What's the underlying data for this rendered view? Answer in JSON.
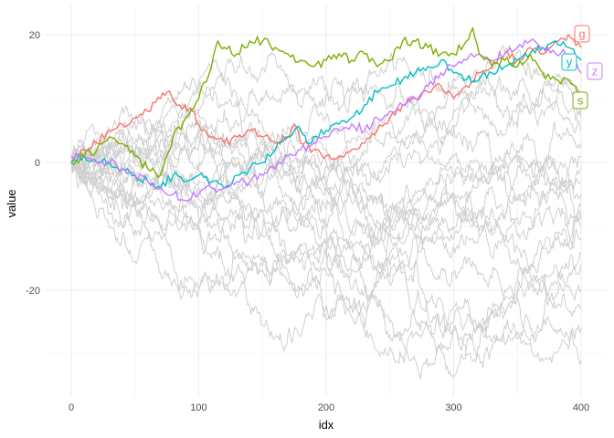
{
  "chart_data": {
    "type": "line",
    "xlabel": "idx",
    "ylabel": "value",
    "xlim": [
      0,
      400
    ],
    "ylim": [
      -35,
      22
    ],
    "x_ticks": [
      0,
      100,
      200,
      300,
      400
    ],
    "y_ticks": [
      -20,
      0,
      20
    ],
    "grid": true,
    "n_background_series": 20,
    "background_color": "#cfcfcf",
    "highlighted_series": [
      {
        "name": "g",
        "color": "#f8766d",
        "points": [
          [
            0,
            0
          ],
          [
            10,
            2
          ],
          [
            20,
            3
          ],
          [
            30,
            5
          ],
          [
            40,
            6
          ],
          [
            50,
            7
          ],
          [
            60,
            8
          ],
          [
            70,
            10
          ],
          [
            75,
            11
          ],
          [
            85,
            9
          ],
          [
            95,
            8
          ],
          [
            100,
            6
          ],
          [
            110,
            4
          ],
          [
            120,
            3
          ],
          [
            130,
            4
          ],
          [
            140,
            5
          ],
          [
            150,
            4
          ],
          [
            160,
            3
          ],
          [
            170,
            4
          ],
          [
            175,
            6
          ],
          [
            180,
            3
          ],
          [
            190,
            2
          ],
          [
            200,
            1
          ],
          [
            210,
            1
          ],
          [
            220,
            2
          ],
          [
            230,
            3
          ],
          [
            240,
            5
          ],
          [
            250,
            7
          ],
          [
            260,
            9
          ],
          [
            270,
            10
          ],
          [
            280,
            11
          ],
          [
            290,
            12
          ],
          [
            300,
            10
          ],
          [
            310,
            12
          ],
          [
            320,
            14
          ],
          [
            330,
            15
          ],
          [
            340,
            17
          ],
          [
            350,
            16
          ],
          [
            360,
            18
          ],
          [
            370,
            17
          ],
          [
            380,
            19
          ],
          [
            390,
            20
          ],
          [
            400,
            18
          ]
        ]
      },
      {
        "name": "y",
        "color": "#00bfc4",
        "points": [
          [
            0,
            0
          ],
          [
            10,
            1
          ],
          [
            20,
            0
          ],
          [
            30,
            0
          ],
          [
            40,
            -1
          ],
          [
            50,
            -2
          ],
          [
            60,
            -3
          ],
          [
            70,
            -4
          ],
          [
            80,
            -2
          ],
          [
            90,
            -3
          ],
          [
            100,
            -2
          ],
          [
            110,
            -3
          ],
          [
            120,
            -4
          ],
          [
            130,
            -2
          ],
          [
            140,
            -1
          ],
          [
            150,
            0
          ],
          [
            160,
            2
          ],
          [
            170,
            4
          ],
          [
            175,
            5
          ],
          [
            180,
            5
          ],
          [
            185,
            3
          ],
          [
            190,
            4
          ],
          [
            200,
            5
          ],
          [
            210,
            6
          ],
          [
            220,
            7
          ],
          [
            230,
            9
          ],
          [
            240,
            11
          ],
          [
            250,
            12
          ],
          [
            260,
            13
          ],
          [
            270,
            14
          ],
          [
            280,
            15
          ],
          [
            290,
            16
          ],
          [
            300,
            14
          ],
          [
            310,
            13
          ],
          [
            320,
            13
          ],
          [
            330,
            14
          ],
          [
            340,
            15
          ],
          [
            350,
            16
          ],
          [
            360,
            17
          ],
          [
            370,
            18
          ],
          [
            380,
            19
          ],
          [
            390,
            18
          ],
          [
            400,
            16
          ]
        ]
      },
      {
        "name": "z",
        "color": "#c77cff",
        "points": [
          [
            0,
            1
          ],
          [
            10,
            1
          ],
          [
            20,
            0
          ],
          [
            30,
            0
          ],
          [
            40,
            -1
          ],
          [
            50,
            -2
          ],
          [
            60,
            -3
          ],
          [
            70,
            -4
          ],
          [
            80,
            -5
          ],
          [
            90,
            -6
          ],
          [
            100,
            -5
          ],
          [
            110,
            -4
          ],
          [
            120,
            -4
          ],
          [
            130,
            -3
          ],
          [
            140,
            -3
          ],
          [
            150,
            -2
          ],
          [
            160,
            -1
          ],
          [
            170,
            1
          ],
          [
            180,
            2
          ],
          [
            190,
            3
          ],
          [
            200,
            4
          ],
          [
            210,
            5
          ],
          [
            220,
            6
          ],
          [
            230,
            5
          ],
          [
            240,
            7
          ],
          [
            250,
            8
          ],
          [
            260,
            9
          ],
          [
            270,
            10
          ],
          [
            280,
            12
          ],
          [
            290,
            14
          ],
          [
            300,
            15
          ],
          [
            310,
            16
          ],
          [
            320,
            17
          ],
          [
            330,
            16
          ],
          [
            340,
            17
          ],
          [
            350,
            18
          ],
          [
            360,
            19
          ],
          [
            370,
            18
          ],
          [
            380,
            17
          ],
          [
            390,
            17
          ],
          [
            400,
            14
          ]
        ]
      },
      {
        "name": "s",
        "color": "#7cae00",
        "points": [
          [
            0,
            0
          ],
          [
            10,
            1
          ],
          [
            20,
            2
          ],
          [
            30,
            4
          ],
          [
            40,
            3
          ],
          [
            50,
            1
          ],
          [
            60,
            -1
          ],
          [
            70,
            -2
          ],
          [
            80,
            4
          ],
          [
            90,
            7
          ],
          [
            100,
            10
          ],
          [
            110,
            15
          ],
          [
            115,
            19
          ],
          [
            120,
            18
          ],
          [
            130,
            17
          ],
          [
            140,
            19
          ],
          [
            150,
            19
          ],
          [
            160,
            18
          ],
          [
            170,
            17
          ],
          [
            180,
            16
          ],
          [
            190,
            15
          ],
          [
            200,
            16
          ],
          [
            210,
            17
          ],
          [
            220,
            16
          ],
          [
            230,
            17
          ],
          [
            240,
            15
          ],
          [
            250,
            16
          ],
          [
            260,
            19
          ],
          [
            270,
            19
          ],
          [
            280,
            18
          ],
          [
            290,
            17
          ],
          [
            300,
            17
          ],
          [
            310,
            19
          ],
          [
            315,
            21
          ],
          [
            320,
            17
          ],
          [
            330,
            15
          ],
          [
            340,
            16
          ],
          [
            350,
            15
          ],
          [
            360,
            17
          ],
          [
            370,
            14
          ],
          [
            380,
            13
          ],
          [
            390,
            13
          ],
          [
            400,
            10
          ]
        ]
      }
    ],
    "series_labels": [
      "g",
      "y",
      "z",
      "s"
    ]
  }
}
